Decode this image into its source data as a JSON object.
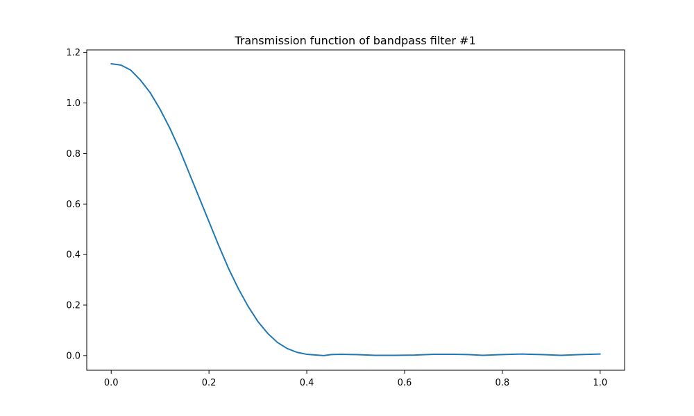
{
  "chart_data": {
    "type": "line",
    "title": "Transmission function of bandpass filter #1",
    "xlabel": "",
    "ylabel": "",
    "xlim": [
      -0.05,
      1.05
    ],
    "ylim": [
      -0.058,
      1.21
    ],
    "xticks": [
      0.0,
      0.2,
      0.4,
      0.6,
      0.8,
      1.0
    ],
    "xtick_labels": [
      "0.0",
      "0.2",
      "0.4",
      "0.6",
      "0.8",
      "1.0"
    ],
    "yticks": [
      0.0,
      0.2,
      0.4,
      0.6,
      0.8,
      1.0,
      1.2
    ],
    "ytick_labels": [
      "0.0",
      "0.2",
      "0.4",
      "0.6",
      "0.8",
      "1.0",
      "1.2"
    ],
    "grid": false,
    "series": [
      {
        "color": "#1f77b4",
        "x": [
          0.0,
          0.02,
          0.04,
          0.06,
          0.08,
          0.1,
          0.12,
          0.14,
          0.16,
          0.18,
          0.2,
          0.22,
          0.24,
          0.26,
          0.28,
          0.3,
          0.32,
          0.34,
          0.36,
          0.38,
          0.4,
          0.42,
          0.435,
          0.45,
          0.47,
          0.5,
          0.54,
          0.58,
          0.62,
          0.66,
          0.7,
          0.73,
          0.76,
          0.8,
          0.84,
          0.88,
          0.92,
          0.96,
          1.0
        ],
        "y": [
          1.155,
          1.15,
          1.13,
          1.09,
          1.04,
          0.975,
          0.9,
          0.815,
          0.72,
          0.625,
          0.53,
          0.435,
          0.345,
          0.265,
          0.195,
          0.135,
          0.088,
          0.052,
          0.028,
          0.013,
          0.005,
          0.002,
          0.0,
          0.004,
          0.005,
          0.004,
          0.001,
          0.001,
          0.002,
          0.005,
          0.005,
          0.004,
          0.001,
          0.004,
          0.006,
          0.004,
          0.001,
          0.004,
          0.006
        ]
      }
    ]
  }
}
